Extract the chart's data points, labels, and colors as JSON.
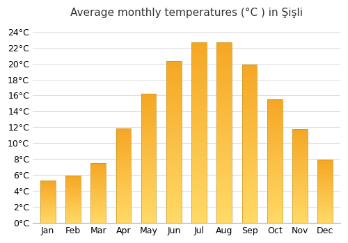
{
  "title": "Average monthly temperatures (°C ) in Şişli",
  "months": [
    "Jan",
    "Feb",
    "Mar",
    "Apr",
    "May",
    "Jun",
    "Jul",
    "Aug",
    "Sep",
    "Oct",
    "Nov",
    "Dec"
  ],
  "values": [
    5.3,
    5.9,
    7.5,
    11.9,
    16.2,
    20.3,
    22.7,
    22.7,
    19.9,
    15.5,
    11.8,
    7.9
  ],
  "bar_color_top": "#F5A623",
  "bar_color_bottom": "#FFD966",
  "edge_color": "#C8921A",
  "background_color": "#ffffff",
  "grid_color": "#e0e0e0",
  "ylim": [
    0,
    25
  ],
  "yticks": [
    0,
    2,
    4,
    6,
    8,
    10,
    12,
    14,
    16,
    18,
    20,
    22,
    24
  ],
  "title_fontsize": 11,
  "tick_fontsize": 9,
  "bar_width": 0.6
}
